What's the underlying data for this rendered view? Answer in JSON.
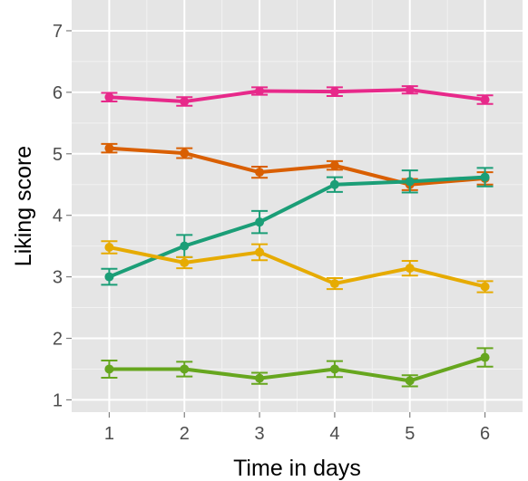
{
  "chart_data": {
    "type": "line",
    "title": "",
    "xlabel": "Time in days",
    "ylabel": "Liking score",
    "x": [
      1,
      2,
      3,
      4,
      5,
      6
    ],
    "xticks": [
      "1",
      "2",
      "3",
      "4",
      "5",
      "6"
    ],
    "yticks": [
      "1",
      "2",
      "3",
      "4",
      "5",
      "6",
      "7"
    ],
    "xlim": [
      0.5,
      6.5
    ],
    "ylim": [
      0.8,
      7.5
    ],
    "grid": true,
    "legend": "none",
    "series": [
      {
        "color": "#E7298A",
        "values": [
          5.92,
          5.85,
          6.02,
          6.01,
          6.04,
          5.88
        ],
        "errors": [
          0.07,
          0.07,
          0.06,
          0.07,
          0.06,
          0.07
        ]
      },
      {
        "color": "#D95F02",
        "values": [
          5.09,
          5.01,
          4.7,
          4.81,
          4.5,
          4.6
        ],
        "errors": [
          0.07,
          0.08,
          0.09,
          0.07,
          0.09,
          0.1
        ]
      },
      {
        "color": "#1B9E77",
        "values": [
          3.0,
          3.5,
          3.89,
          4.5,
          4.55,
          4.62
        ],
        "errors": [
          0.13,
          0.18,
          0.18,
          0.12,
          0.18,
          0.15
        ]
      },
      {
        "color": "#E6AB02",
        "values": [
          3.48,
          3.23,
          3.4,
          2.89,
          3.14,
          2.84
        ],
        "errors": [
          0.1,
          0.09,
          0.13,
          0.09,
          0.12,
          0.09
        ]
      },
      {
        "color": "#66A61E",
        "values": [
          1.5,
          1.5,
          1.35,
          1.5,
          1.31,
          1.69
        ],
        "errors": [
          0.14,
          0.12,
          0.09,
          0.13,
          0.09,
          0.15
        ]
      }
    ]
  }
}
